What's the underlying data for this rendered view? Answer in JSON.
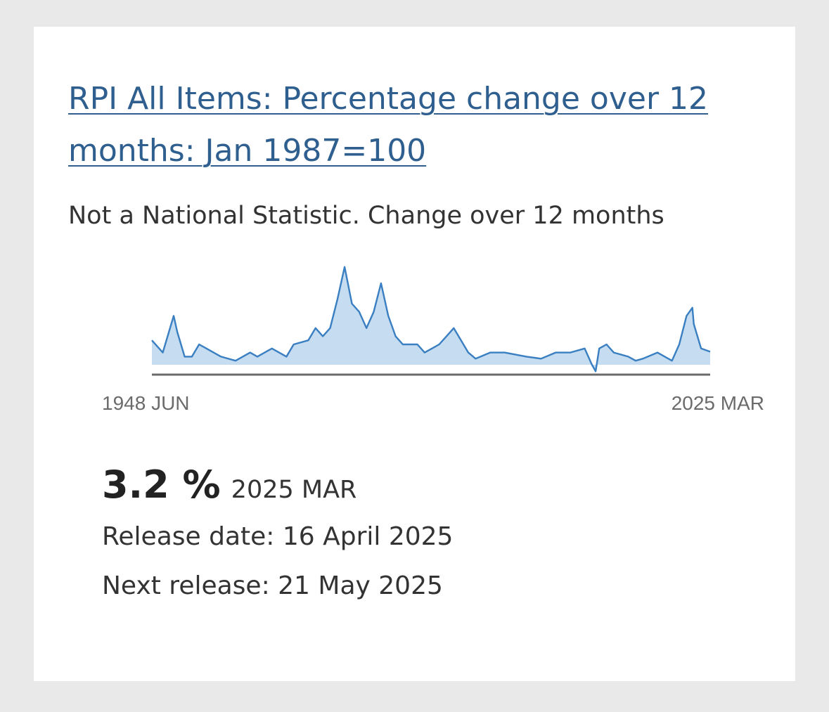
{
  "card": {
    "title": "RPI All Items: Percentage change over 12 months: Jan 1987=100",
    "subtitle": "Not a National Statistic. Change over 12 months",
    "latest_value": "3.2 %",
    "latest_period": "2025 MAR",
    "release_date": "Release date: 16 April 2025",
    "next_release": "Next release: 21 May 2025"
  },
  "colors": {
    "link": "#2f5f8f",
    "line": "#3a7fc1",
    "area": "#c6dcf0",
    "axis": "#6b6b6b"
  },
  "chart_data": {
    "type": "area",
    "x_start_label": "1948 JUN",
    "x_end_label": "2025 MAR",
    "x": [
      1948.5,
      1950,
      1951.5,
      1952,
      1953,
      1954,
      1955,
      1956,
      1958,
      1960,
      1962,
      1963,
      1965,
      1967,
      1968,
      1970,
      1971,
      1972,
      1973,
      1974,
      1975,
      1976,
      1977,
      1978,
      1979,
      1980,
      1981,
      1982,
      1983,
      1985,
      1986,
      1987,
      1988,
      1989,
      1990,
      1991,
      1992,
      1993,
      1995,
      1997,
      2000,
      2002,
      2004,
      2006,
      2008,
      2009,
      2009.5,
      2010,
      2011,
      2012,
      2014,
      2015,
      2016,
      2018,
      2020,
      2021,
      2022,
      2022.8,
      2023,
      2024,
      2025.25
    ],
    "values": [
      6,
      3,
      12,
      8,
      2,
      2,
      5,
      4,
      2,
      1,
      3,
      2,
      4,
      2,
      5,
      6,
      9,
      7,
      9,
      16,
      24,
      15,
      13,
      9,
      13,
      20,
      12,
      7,
      5,
      5,
      3,
      4,
      5,
      7,
      9,
      6,
      3,
      1.5,
      3,
      3,
      2,
      1.5,
      3,
      3,
      4,
      0,
      -1.6,
      4,
      5,
      3,
      2,
      1,
      1.5,
      3,
      1,
      5,
      12,
      14,
      10,
      4,
      3.2
    ],
    "baseline": 0
  }
}
